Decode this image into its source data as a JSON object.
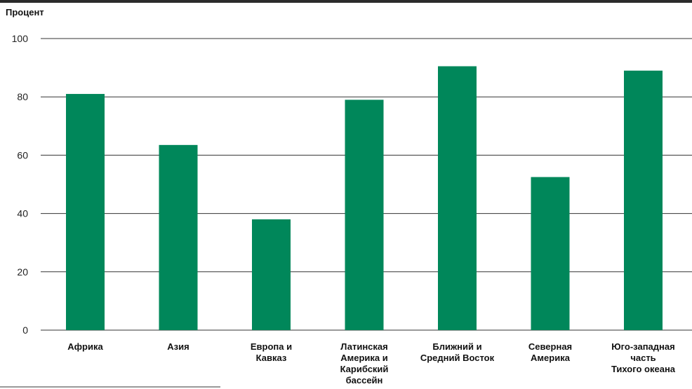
{
  "chart_data": {
    "type": "bar",
    "ylabel": "Процент",
    "categories": [
      [
        "Африка"
      ],
      [
        "Азия"
      ],
      [
        "Европа и",
        "Кавказ"
      ],
      [
        "Латинская",
        "Америка и",
        "Карибский",
        "бассейн"
      ],
      [
        "Ближний и",
        "Средний Восток"
      ],
      [
        "Северная",
        "Америка"
      ],
      [
        "Юго-западная",
        "часть",
        "Тихого океана"
      ]
    ],
    "values": [
      81,
      63.5,
      38,
      79,
      90.5,
      52.5,
      89
    ],
    "ylim": [
      0,
      100
    ],
    "yticks": [
      0,
      20,
      40,
      60,
      80,
      100
    ],
    "grid": true,
    "colors": {
      "bar": "#00875a",
      "grid": "#333333",
      "frame": "#2b2b2b"
    }
  }
}
